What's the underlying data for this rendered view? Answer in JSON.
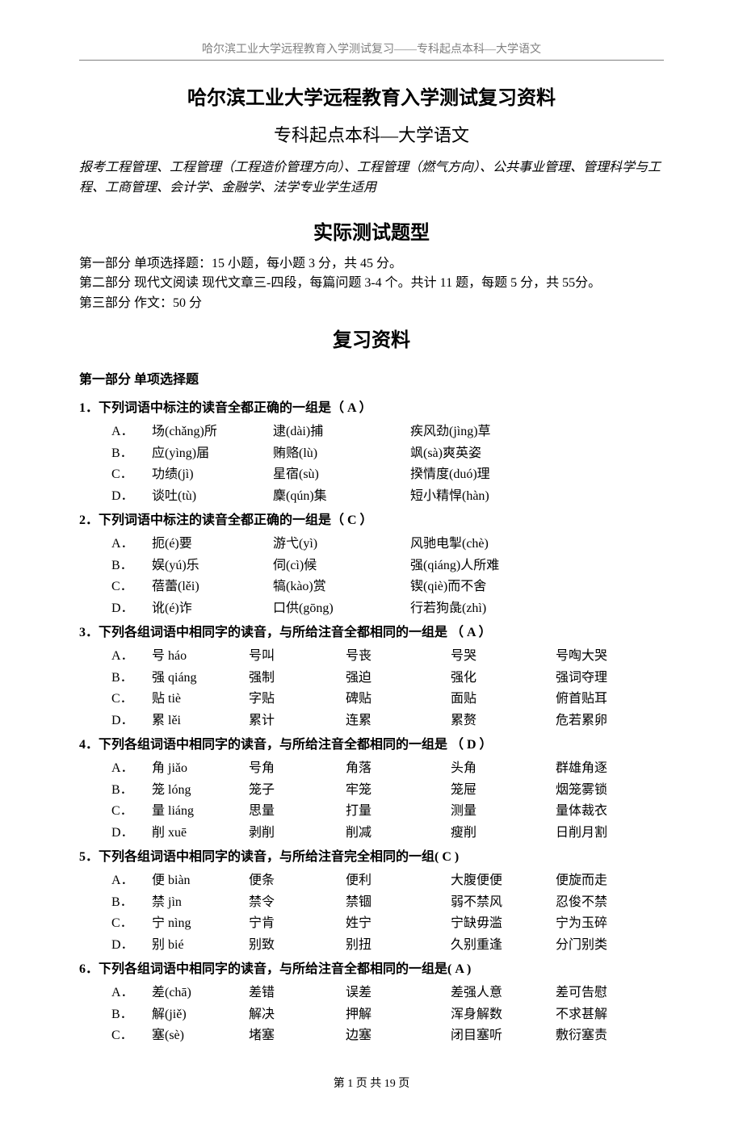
{
  "header": "哈尔滨工业大学远程教育入学测试复习——专科起点本科—大学语文",
  "title1": "哈尔滨工业大学远程教育入学测试复习资料",
  "title2": "专科起点本科—大学语文",
  "majors": "报考工程管理、工程管理（工程造价管理方向）、工程管理（燃气方向）、公共事业管理、管理科学与工程、工商管理、会计学、金融学、法学专业学生适用",
  "sectionFormat": "实际测试题型",
  "formatLines": [
    "第一部分  单项选择题：15 小题，每小题 3 分，共 45 分。",
    "第二部分  现代文阅读  现代文章三-四段，每篇问题 3-4 个。共计 11 题，每题 5 分，共 55分。",
    "第三部分  作文：50 分"
  ],
  "sectionReview": "复习资料",
  "partHeading": "第一部分  单项选择题",
  "questions": [
    {
      "stem": "1．下列词语中标注的读音全都正确的一组是（  A  ）",
      "cols": 3,
      "options": [
        [
          "A．",
          "场(chǎng)所",
          "逮(dài)捕",
          "疾风劲(jìng)草"
        ],
        [
          "B．",
          "应(yìng)届",
          "贿赂(lù)",
          "飒(sà)爽英姿"
        ],
        [
          "C．",
          "功绩(jì)",
          "星宿(sù)",
          "揆情度(duó)理"
        ],
        [
          "D．",
          "谈吐(tù)",
          "麇(qún)集",
          "短小精悍(hàn)"
        ]
      ]
    },
    {
      "stem": "2．下列词语中标注的读音全都正确的一组是（  C  ）",
      "cols": 3,
      "options": [
        [
          "A．",
          "扼(é)要",
          "游弋(yì)",
          "风驰电掣(chè)"
        ],
        [
          "B．",
          "娱(yú)乐",
          "伺(cì)候",
          "强(qiáng)人所难"
        ],
        [
          "C．",
          "蓓蕾(lěi)",
          "犒(kào)赏",
          "锲(qiè)而不舍"
        ],
        [
          "D．",
          "讹(é)诈",
          "口供(gōng)",
          "行若狗彘(zhì)"
        ]
      ]
    },
    {
      "stem": "3．下列各组词语中相同字的读音，与所给注音全都相同的一组是  （  A  ）",
      "cols": 5,
      "options": [
        [
          "A．",
          "号 háo",
          "号叫",
          "号丧",
          "号哭",
          "号啕大哭"
        ],
        [
          "B．",
          "强 qiáng",
          "强制",
          "强迫",
          "强化",
          "强词夺理"
        ],
        [
          "C．",
          "贴 tiè",
          "字贴",
          "碑贴",
          "面贴",
          "俯首贴耳"
        ],
        [
          "D．",
          "累 lěi",
          "累计",
          "连累",
          "累赘",
          "危若累卵"
        ]
      ]
    },
    {
      "stem": "4．下列各组词语中相同字的读音，与所给注音全都相同的一组是  （  D  ）",
      "cols": 5,
      "options": [
        [
          "A．",
          "角 jiǎo",
          "号角",
          "角落",
          "头角",
          "群雄角逐"
        ],
        [
          "B．",
          "笼 lóng",
          "笼子",
          "牢笼",
          "笼屉",
          "烟笼雾锁"
        ],
        [
          "C．",
          "量 liáng",
          "思量",
          "打量",
          "测量",
          "量体裁衣"
        ],
        [
          "D．",
          "削 xuē",
          "剥削",
          "削减",
          "瘦削",
          "日削月割"
        ]
      ]
    },
    {
      "stem": "5．下列各组词语中相同字的读音，与所给注音完全相同的一组(    C    )",
      "cols": 5,
      "options": [
        [
          "A．",
          "便 biàn",
          "便条",
          "便利",
          "大腹便便",
          "便旋而走"
        ],
        [
          "B．",
          "禁 jìn",
          "禁令",
          "禁锢",
          "弱不禁风",
          "忍俊不禁"
        ],
        [
          "C．",
          "宁 nìng",
          "宁肯",
          "姓宁",
          "宁缺毋滥",
          "宁为玉碎"
        ],
        [
          "D．",
          "别 bié",
          "别致",
          "别扭",
          "久别重逢",
          "分门别类"
        ]
      ]
    },
    {
      "stem": "6．下列各组词语中相同字的读音，与所给注音全都相同的一组是(    A    )",
      "cols": 5,
      "options": [
        [
          "A．",
          "差(chā)",
          "差错",
          "误差",
          "差强人意",
          "差可告慰"
        ],
        [
          "B．",
          "解(jiě)",
          "解决",
          "押解",
          "浑身解数",
          "不求甚解"
        ],
        [
          "C．",
          "塞(sè)",
          "堵塞",
          "边塞",
          "闭目塞听",
          "敷衍塞责"
        ]
      ]
    }
  ],
  "footer": "第  1  页  共  19  页"
}
